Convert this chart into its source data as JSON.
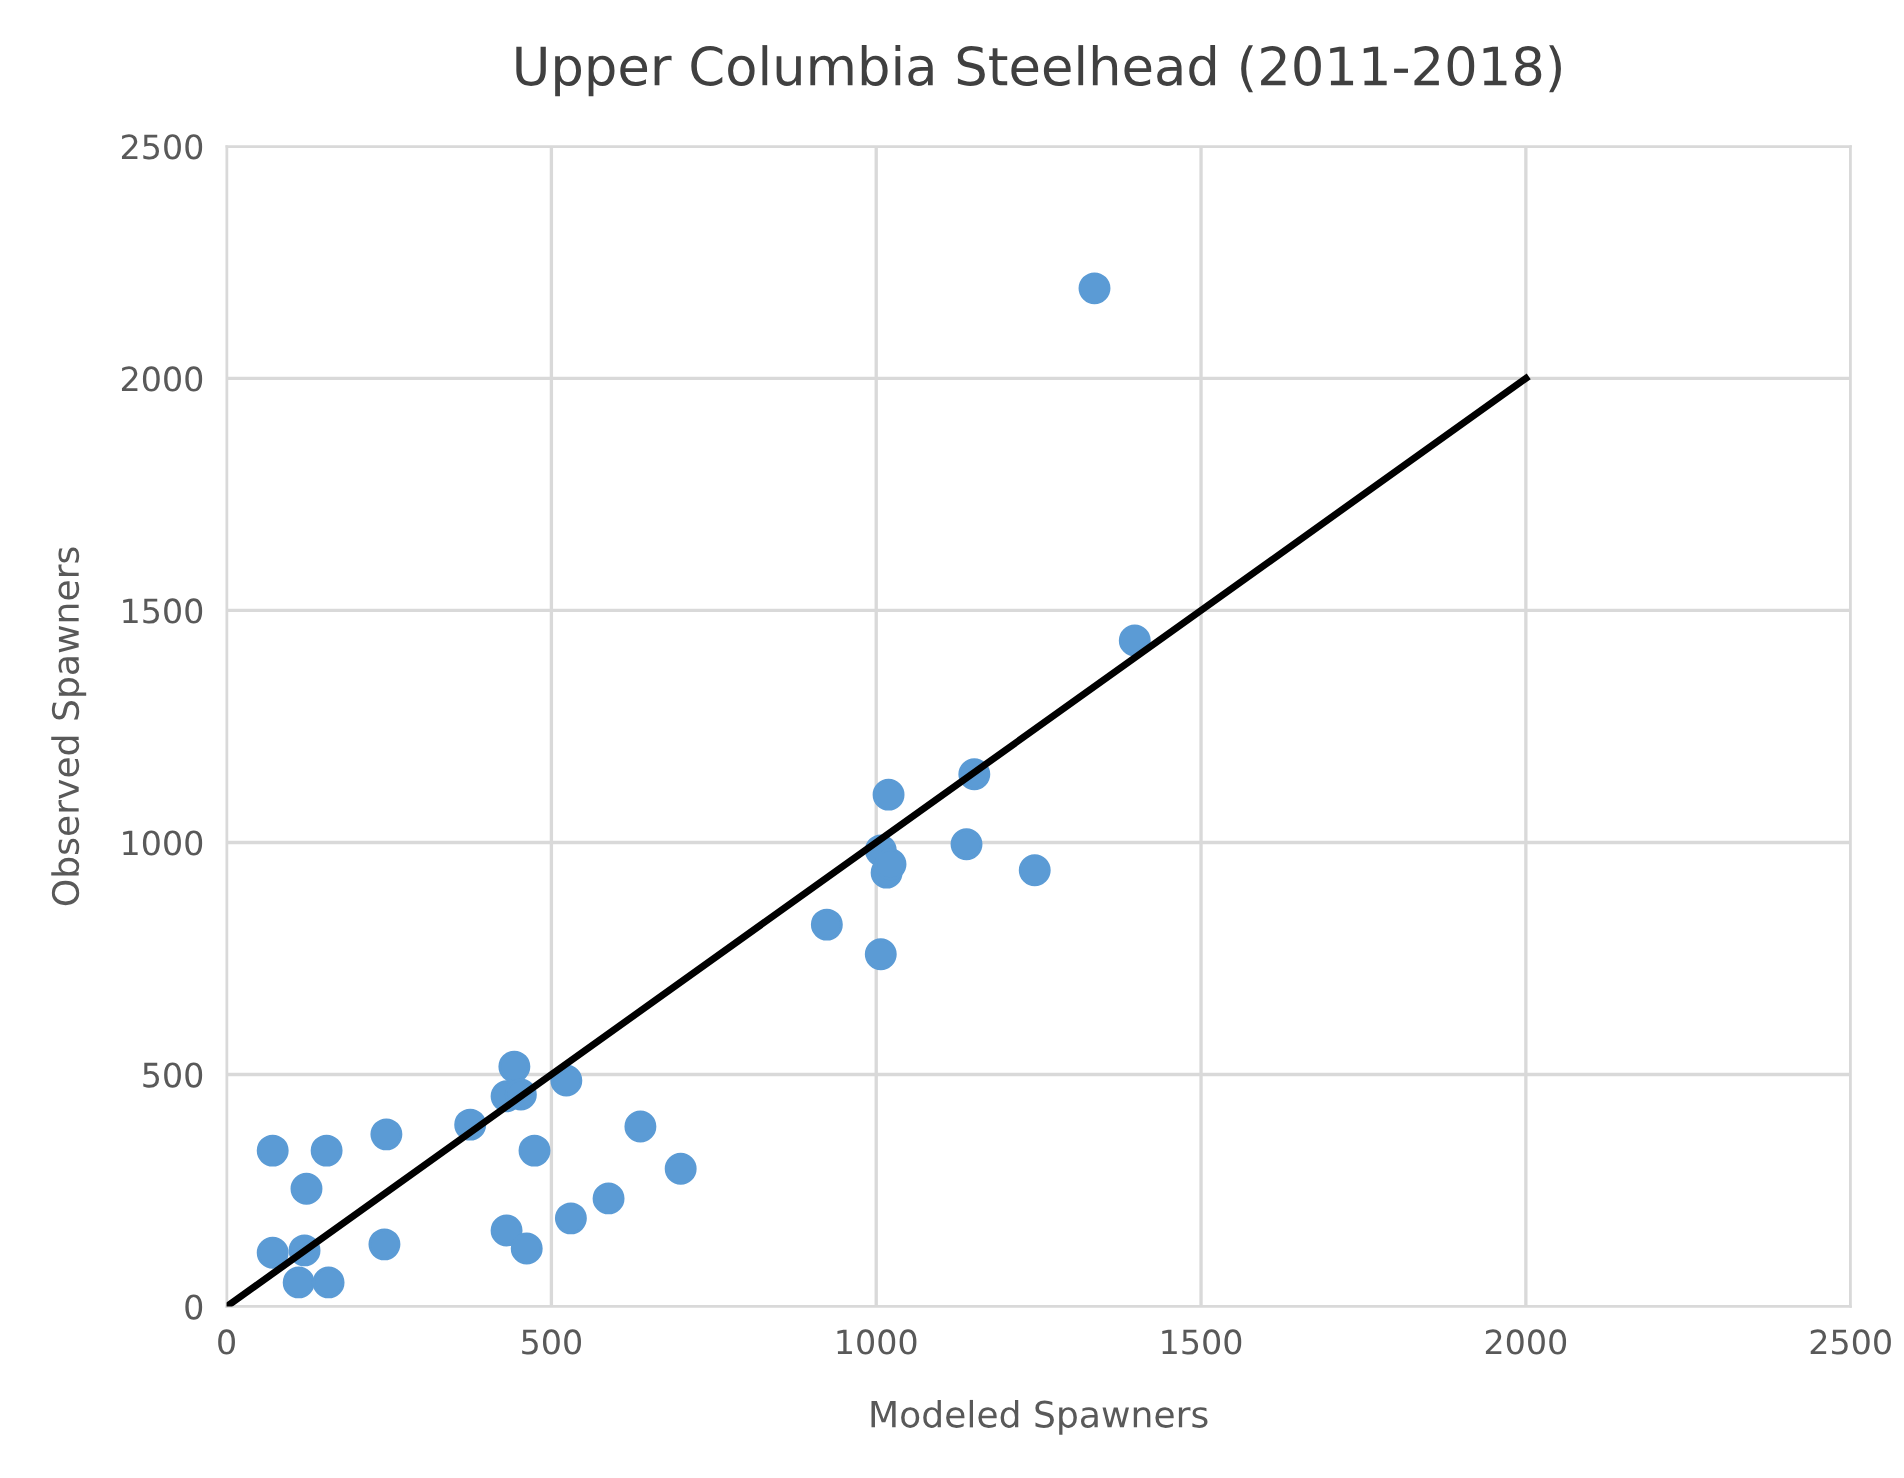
{
  "chart_data": {
    "type": "scatter",
    "title": "Upper Columbia Steelhead (2011-2018)",
    "xlabel": "Modeled Spawners",
    "ylabel": "Observed Spawners",
    "series": [
      {
        "color": "#5b9bd5",
        "marker": "circle",
        "x": [
          71,
          154,
          246,
          123,
          71,
          120,
          111,
          157,
          243,
          375,
          431,
          443,
          453,
          523,
          474,
          431,
          462,
          530,
          588,
          637,
          699,
          924,
          1007,
          1007,
          1019,
          1016,
          1022,
          1139,
          1151,
          1244,
          1336,
          1398
        ],
        "values": [
          336,
          336,
          371,
          254,
          116,
          121,
          52,
          52,
          134,
          392,
          453,
          517,
          457,
          487,
          336,
          164,
          125,
          190,
          233,
          388,
          297,
          823,
          759,
          983,
          1103,
          935,
          953,
          996,
          1147,
          940,
          2194,
          1435
        ]
      },
      {
        "type": "line",
        "color": "#000000",
        "marker": "none",
        "line_style": "solid",
        "x": [
          0,
          2000
        ],
        "values": [
          0,
          2000
        ]
      }
    ],
    "xlim": [
      0,
      2500
    ],
    "ylim": [
      0,
      2500
    ],
    "xticks": [
      0,
      500,
      1000,
      1500,
      2000,
      2500
    ],
    "yticks": [
      0,
      500,
      1000,
      1500,
      2000,
      2500
    ],
    "grid": true,
    "legend": false
  }
}
